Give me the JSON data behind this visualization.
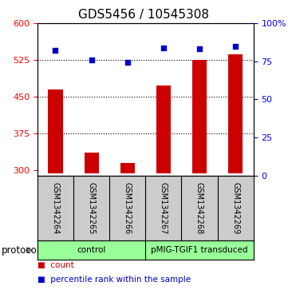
{
  "title": "GDS5456 / 10545308",
  "samples": [
    "GSM1342264",
    "GSM1342265",
    "GSM1342266",
    "GSM1342267",
    "GSM1342268",
    "GSM1342269"
  ],
  "counts": [
    465,
    337,
    316,
    473,
    525,
    537
  ],
  "percentiles": [
    82,
    76,
    74.5,
    84,
    83,
    85
  ],
  "ylim_left": [
    290,
    600
  ],
  "ylim_right": [
    0,
    100
  ],
  "yticks_left": [
    300,
    375,
    450,
    525,
    600
  ],
  "yticks_right": [
    0,
    25,
    50,
    75,
    100
  ],
  "ytick_labels_right": [
    "0",
    "25",
    "50",
    "75",
    "100%"
  ],
  "bar_color": "#cc0000",
  "scatter_color": "#0000cc",
  "protocol_labels": [
    "control",
    "pMIG-TGIF1 transduced"
  ],
  "protocol_color": "#99ff99",
  "label_area_color": "#cccccc",
  "bar_bottom": 295,
  "grid_ticks": [
    375,
    450,
    525
  ]
}
